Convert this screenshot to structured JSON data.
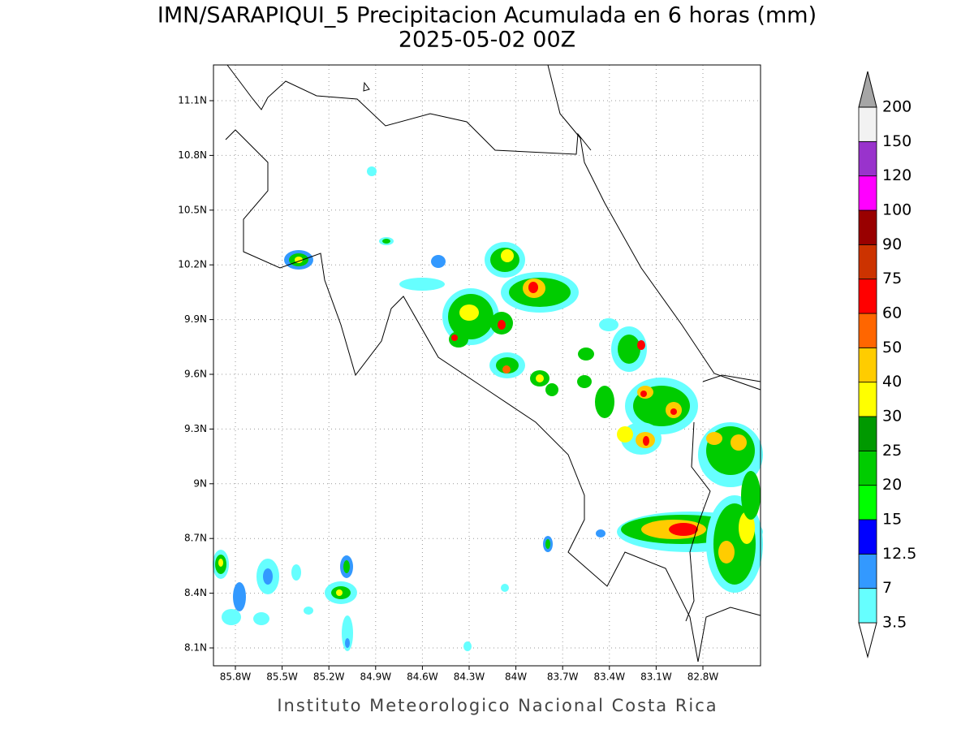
{
  "title": "IMN/SARAPIQUI_5 Precipitacion Acumulada en 6 horas (mm)",
  "subtitle": "2025-05-02 00Z",
  "footer": "Instituto Meteorologico Nacional Costa Rica",
  "lon_ticks": [
    "85.8W",
    "85.5W",
    "85.2W",
    "84.9W",
    "84.6W",
    "84.3W",
    "84W",
    "83.7W",
    "83.4W",
    "83.1W",
    "82.8W"
  ],
  "lat_ticks": [
    "11.1N",
    "10.8N",
    "10.5N",
    "10.2N",
    "9.9N",
    "9.6N",
    "9.3N",
    "9N",
    "8.7N",
    "8.4N",
    "8.1N"
  ],
  "colorbar": {
    "levels": [
      3.5,
      7,
      12.5,
      15,
      20,
      25,
      30,
      40,
      50,
      60,
      75,
      90,
      100,
      120,
      150,
      200
    ],
    "below_color": "#ffffff",
    "colors": [
      "#66ffff",
      "#3399ff",
      "#0000ff",
      "#00ff00",
      "#00cc00",
      "#009900",
      "#ffff00",
      "#ffcc00",
      "#ff6600",
      "#ff0000",
      "#cc3300",
      "#990000",
      "#ff00ff",
      "#9933cc",
      "#f2f2f2"
    ],
    "above_color": "#a6a6a6"
  }
}
